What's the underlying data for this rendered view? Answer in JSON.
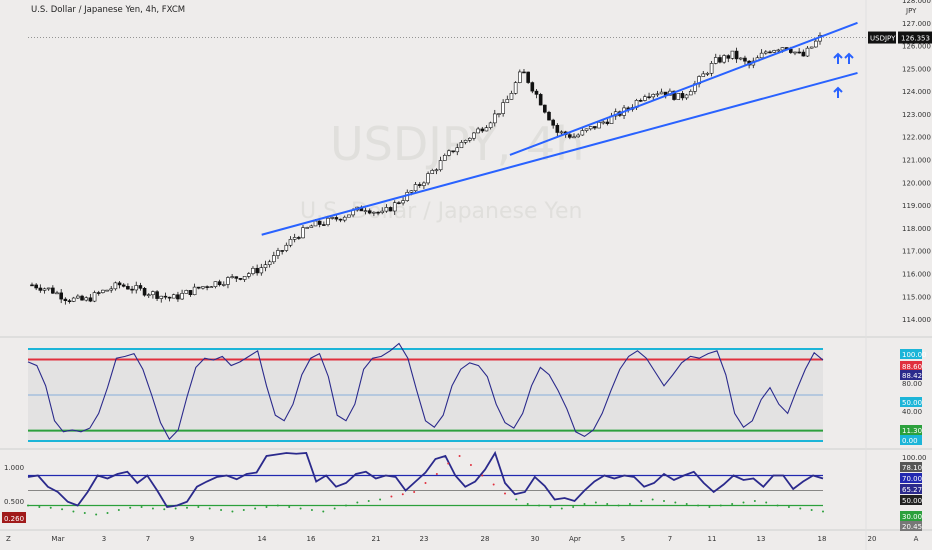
{
  "header": {
    "title": "U.S. Dollar / Japanese Yen, 4h, FXCM",
    "currency": "JPY",
    "watermark_symbol": "USDJPY, 4h",
    "watermark_name": "U.S. Dollar / Japanese Yen"
  },
  "price_tag": {
    "symbol": "USDJPY",
    "value": "126.353"
  },
  "colors": {
    "background": "#eeeceb",
    "candle": "#111111",
    "trendline": "#2962ff",
    "oscillator_line": "#2b2a8c",
    "cyan_band": "#1cb5d8",
    "red_band": "#e0303e",
    "green_band": "#2ca03c"
  },
  "x_axis": {
    "labels": [
      "Mar",
      "3",
      "7",
      "9",
      "14",
      "16",
      "21",
      "23",
      "28",
      "30",
      "Apr",
      "5",
      "7",
      "11",
      "13",
      "18",
      "20",
      "A"
    ],
    "corner_left": "Z",
    "corner_right": "A"
  },
  "chart_data": [
    {
      "type": "candlestick",
      "title": "U.S. Dollar / Japanese Yen, 4h, FXCM",
      "ylabel": "JPY",
      "ylim": [
        113.3,
        128.0
      ],
      "y_ticks": [
        "128.000",
        "127.000",
        "126.000",
        "125.000",
        "124.000",
        "123.000",
        "122.000",
        "121.000",
        "120.000",
        "119.000",
        "118.000",
        "117.000",
        "116.000",
        "115.000",
        "114.000"
      ],
      "approx_close_path": [
        115.5,
        115.3,
        114.9,
        114.8,
        115.2,
        115.5,
        115.3,
        115.1,
        114.9,
        115.2,
        115.5,
        115.7,
        115.9,
        116.2,
        116.8,
        117.6,
        118.1,
        118.3,
        118.6,
        118.9,
        118.6,
        119.2,
        119.8,
        120.6,
        121.4,
        122.0,
        122.6,
        123.4,
        124.9,
        123.6,
        122.2,
        122.0,
        122.4,
        122.8,
        123.2,
        123.9,
        124.0,
        123.7,
        124.4,
        125.3,
        125.6,
        125.1,
        125.8,
        126.0,
        125.5,
        126.35
      ],
      "last_value": 126.353,
      "trendlines": [
        {
          "from": {
            "date": "Mar 15",
            "price": 117.7
          },
          "to": {
            "date": "Apr 20",
            "price": 124.8
          }
        },
        {
          "from": {
            "date": "Mar 30",
            "price": 121.2
          },
          "to": {
            "date": "Apr 20",
            "price": 127.0
          }
        }
      ],
      "annotations": [
        "up-arrow",
        "up-arrow",
        "up-arrow"
      ]
    },
    {
      "type": "line",
      "title": "",
      "ylim": [
        0,
        100
      ],
      "levels": [
        {
          "value": 100.0,
          "label": "100.00",
          "color": "#1cb5d8"
        },
        {
          "value": 88.6,
          "label": "88.60",
          "color": "#e0303e"
        },
        {
          "value": 11.3,
          "label": "11.30",
          "color": "#2ca03c"
        },
        {
          "value": 0.0,
          "label": "0.00",
          "color": "#1cb5d8"
        },
        {
          "value": 50.0,
          "label": "50.00",
          "color": "#2d7bd1"
        }
      ],
      "tag_labels": [
        "100.00",
        "88.60",
        "88.42",
        "80.00",
        "50.00",
        "40.00",
        "11.30",
        "0.00"
      ],
      "last_value": 88.42,
      "series": [
        {
          "values": [
            86,
            82,
            60,
            22,
            10,
            12,
            10,
            14,
            30,
            58,
            90,
            92,
            95,
            78,
            50,
            20,
            2,
            12,
            48,
            80,
            90,
            88,
            92,
            82,
            86,
            92,
            98,
            60,
            28,
            22,
            40,
            72,
            90,
            95,
            70,
            28,
            22,
            40,
            78,
            90,
            92,
            98,
            106,
            90,
            55,
            22,
            15,
            28,
            60,
            78,
            85,
            82,
            70,
            40,
            20,
            14,
            30,
            60,
            80,
            72,
            55,
            35,
            10,
            5,
            12,
            30,
            55,
            78,
            92,
            98,
            90,
            75,
            60,
            72,
            85,
            92,
            90,
            95,
            98,
            72,
            30,
            15,
            22,
            45,
            58,
            40,
            30,
            55,
            78,
            96,
            88
          ]
        }
      ]
    },
    {
      "type": "line",
      "title": "",
      "ylim": [
        0,
        100
      ],
      "y_ticks": [
        "1.000",
        "0.500",
        "0.260"
      ],
      "tag_labels": [
        "100.00",
        "78.10",
        "70.00",
        "65.27",
        "50.00",
        "30.00",
        "20.45"
      ],
      "levels": [
        {
          "value": 70,
          "label": "70.00",
          "color": "#2128b0"
        },
        {
          "value": 50,
          "label": "50.00",
          "color": "#222222"
        },
        {
          "value": 30,
          "label": "30.00",
          "color": "#2ca03c"
        }
      ],
      "series": [
        {
          "name": "",
          "style": "solid",
          "values": [
            68,
            70,
            55,
            48,
            35,
            30,
            48,
            70,
            66,
            72,
            75,
            60,
            70,
            50,
            28,
            30,
            35,
            55,
            62,
            68,
            70,
            65,
            72,
            74,
            96,
            98,
            100,
            99,
            100,
            62,
            70,
            55,
            60,
            72,
            75,
            66,
            70,
            68,
            50,
            62,
            74,
            92,
            96,
            70,
            55,
            62,
            78,
            100,
            60,
            45,
            48,
            68,
            56,
            38,
            40,
            36,
            50,
            62,
            70,
            66,
            70,
            68,
            55,
            60,
            72,
            64,
            70,
            75,
            60,
            48,
            58,
            70,
            64,
            66,
            55,
            70,
            70,
            52,
            62,
            70,
            66
          ]
        },
        {
          "name": "",
          "style": "dotted",
          "values": [
            30,
            28,
            27,
            25,
            22,
            20,
            18,
            20,
            24,
            27,
            28,
            26,
            25,
            26,
            27,
            28,
            26,
            24,
            22,
            24,
            26,
            28,
            30,
            28,
            26,
            24,
            22,
            26,
            30,
            34,
            36,
            38,
            42,
            45,
            48,
            60,
            72,
            86,
            96,
            84,
            70,
            58,
            46,
            38,
            32,
            30,
            28,
            26,
            28,
            32,
            34,
            32,
            30,
            32,
            36,
            38,
            36,
            34,
            32,
            30,
            28,
            30,
            32,
            34,
            36,
            34,
            30,
            28,
            26,
            24,
            22
          ]
        }
      ],
      "last_value": 65.27
    }
  ]
}
